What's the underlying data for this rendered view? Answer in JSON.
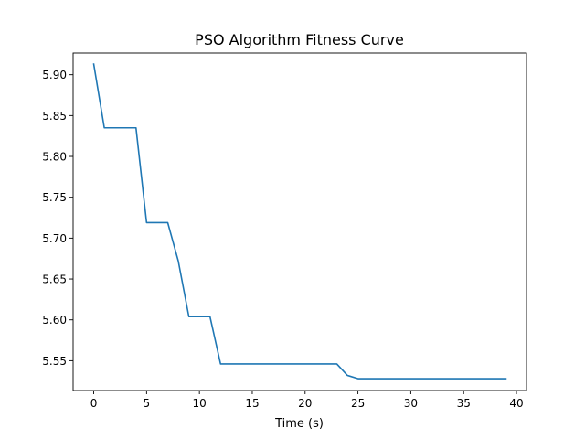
{
  "chart_data": {
    "type": "line",
    "title": "PSO Algorithm Fitness Curve",
    "xlabel": "Time (s)",
    "ylabel": "",
    "xlim": [
      -1.95,
      40.95
    ],
    "ylim": [
      5.5135,
      5.9265
    ],
    "xticks": [
      0,
      5,
      10,
      15,
      20,
      25,
      30,
      35,
      40
    ],
    "yticks": [
      5.55,
      5.6,
      5.65,
      5.7,
      5.75,
      5.8,
      5.85,
      5.9
    ],
    "grid": false,
    "line_color": "#1f77b4",
    "series": [
      {
        "x": [
          0,
          1,
          2,
          3,
          4,
          5,
          6,
          7,
          8,
          9,
          10,
          11,
          12,
          13,
          14,
          15,
          16,
          17,
          18,
          19,
          20,
          21,
          22,
          23,
          24,
          25,
          26,
          27,
          28,
          29,
          30,
          31,
          32,
          33,
          34,
          35,
          36,
          37,
          38,
          39
        ],
        "values": [
          5.913,
          5.835,
          5.835,
          5.835,
          5.835,
          5.719,
          5.719,
          5.719,
          5.672,
          5.604,
          5.604,
          5.604,
          5.546,
          5.546,
          5.546,
          5.546,
          5.546,
          5.546,
          5.546,
          5.546,
          5.546,
          5.546,
          5.546,
          5.546,
          5.532,
          5.528,
          5.528,
          5.528,
          5.528,
          5.528,
          5.528,
          5.528,
          5.528,
          5.528,
          5.528,
          5.528,
          5.528,
          5.528,
          5.528,
          5.528
        ]
      }
    ]
  }
}
